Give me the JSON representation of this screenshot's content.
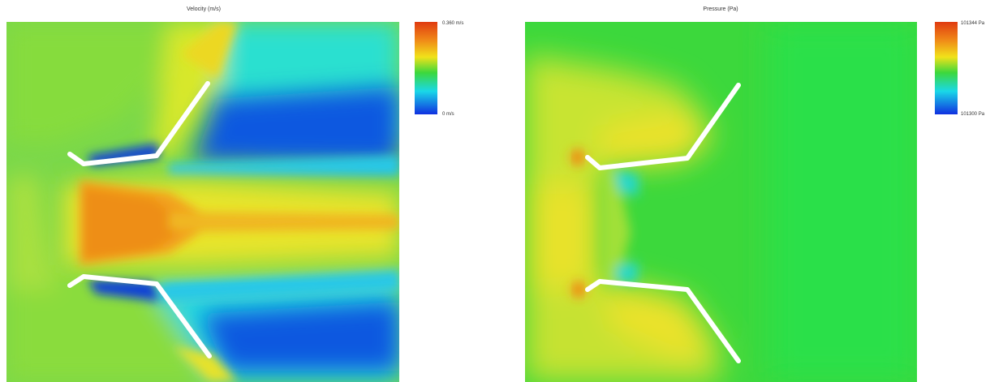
{
  "velocity_plot": {
    "title": "Velocity (m/s)",
    "colorbar": {
      "max_label": "0.360 m/s",
      "min_label": "0 m/s"
    },
    "colors": {
      "max": "#e03a10",
      "high": "#f1d21a",
      "mid": "#3cd83c",
      "low": "#1ad8e8",
      "min": "#1030e0"
    }
  },
  "pressure_plot": {
    "title": "Pressure (Pa)",
    "colorbar": {
      "max_label": "101344 Pa",
      "min_label": "101300 Pa"
    },
    "colors": {
      "max": "#e03a10",
      "high": "#f1d21a",
      "mid": "#3cd83c",
      "low": "#1ad8e8",
      "min": "#1030e0"
    }
  }
}
